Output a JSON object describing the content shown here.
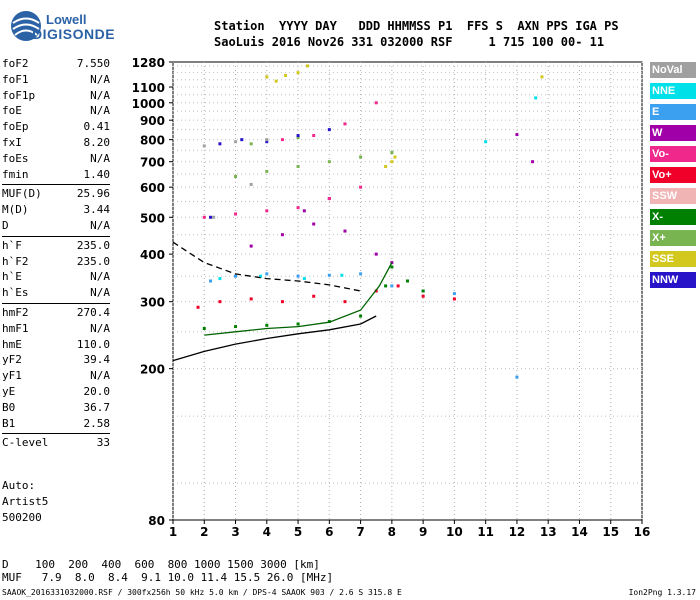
{
  "logo": {
    "line1": "Lowell",
    "line2": "DIGISONDE"
  },
  "header": {
    "labels": "Station  YYYY DAY   DDD HHMMSS P1  FFS S  AXN PPS IGA PS",
    "values": "SaoLuis 2016 Nov26 331 032000 RSF     1 715 100 00- 11"
  },
  "params_group1": [
    {
      "name": "foF2",
      "value": "7.550"
    },
    {
      "name": "foF1",
      "value": "N/A"
    },
    {
      "name": "foF1p",
      "value": "N/A"
    },
    {
      "name": "foE",
      "value": "N/A"
    },
    {
      "name": "foEp",
      "value": "0.41"
    },
    {
      "name": "fxI",
      "value": "8.20"
    },
    {
      "name": "foEs",
      "value": "N/A"
    },
    {
      "name": "fmin",
      "value": "1.40"
    }
  ],
  "params_group2": [
    {
      "name": "MUF(D)",
      "value": "25.96"
    },
    {
      "name": "M(D)",
      "value": "3.44"
    },
    {
      "name": "D",
      "value": "N/A"
    }
  ],
  "params_group3": [
    {
      "name": "h`F",
      "value": "235.0"
    },
    {
      "name": "h`F2",
      "value": "235.0"
    },
    {
      "name": "h`E",
      "value": "N/A"
    },
    {
      "name": "h`Es",
      "value": "N/A"
    }
  ],
  "params_group4": [
    {
      "name": "hmF2",
      "value": "270.4"
    },
    {
      "name": "hmF1",
      "value": "N/A"
    },
    {
      "name": "hmE",
      "value": "110.0"
    },
    {
      "name": "yF2",
      "value": "39.4"
    },
    {
      "name": "yF1",
      "value": "N/A"
    },
    {
      "name": "yE",
      "value": "20.0"
    },
    {
      "name": "B0",
      "value": "36.7"
    },
    {
      "name": "B1",
      "value": "2.58"
    }
  ],
  "params_group5": [
    {
      "name": "C-level",
      "value": "33"
    }
  ],
  "auto": {
    "line1": "Auto:",
    "line2": "Artist5",
    "line3": "500200"
  },
  "legend": [
    {
      "label": "NoVal",
      "color": "#a0a0a0"
    },
    {
      "label": "NNE",
      "color": "#00e0e8"
    },
    {
      "label": "E",
      "color": "#3ca0f0"
    },
    {
      "label": "W",
      "color": "#a000a8"
    },
    {
      "label": "Vo-",
      "color": "#f0288c"
    },
    {
      "label": "Vo+",
      "color": "#f00028"
    },
    {
      "label": "SSW",
      "color": "#f0b4b4"
    },
    {
      "label": "X-",
      "color": "#008000"
    },
    {
      "label": "X+",
      "color": "#78b450"
    },
    {
      "label": "SSE",
      "color": "#d2c81e"
    },
    {
      "label": "NNW",
      "color": "#2814c8"
    }
  ],
  "bottom": {
    "d_row": "D    100  200  400  600  800 1000 1500 3000 [km]",
    "muf_row": "MUF   7.9  8.0  8.4  9.1 10.0 11.4 15.5 26.0 [MHz]"
  },
  "footer": "SAAOK_2016331032000.RSF / 300fx256h 50 kHz 5.0 km / DPS-4 SAAOK 903 / 2.6 S 315.8 E",
  "version": "Ion2Png 1.3.17",
  "chart_data": {
    "type": "scatter",
    "title": "",
    "xlabel": "",
    "ylabel": "",
    "xlim": [
      1,
      16
    ],
    "ylim": [
      80,
      1280
    ],
    "y_scale": "log",
    "x_ticks": [
      1,
      2,
      3,
      4,
      5,
      6,
      7,
      8,
      9,
      10,
      11,
      12,
      13,
      14,
      15,
      16
    ],
    "y_ticks": [
      80,
      200,
      300,
      400,
      500,
      600,
      700,
      800,
      900,
      1000,
      1100,
      1280
    ],
    "grid": true,
    "series": [
      {
        "name": "Vo+",
        "color": "#f00028",
        "points": [
          [
            1.8,
            290
          ],
          [
            2.5,
            300
          ],
          [
            3.5,
            305
          ],
          [
            4.5,
            300
          ],
          [
            5.5,
            310
          ],
          [
            6.5,
            300
          ],
          [
            7.5,
            320
          ],
          [
            8.2,
            330
          ],
          [
            9.0,
            310
          ],
          [
            10.0,
            305
          ]
        ]
      },
      {
        "name": "E",
        "color": "#3ca0f0",
        "points": [
          [
            3.0,
            350
          ],
          [
            4.0,
            355
          ],
          [
            5.0,
            350
          ],
          [
            6.0,
            352
          ],
          [
            7.0,
            355
          ],
          [
            8.0,
            330
          ],
          [
            9.0,
            320
          ],
          [
            10.0,
            315
          ],
          [
            2.2,
            340
          ],
          [
            12.0,
            190
          ]
        ]
      },
      {
        "name": "W",
        "color": "#a000a8",
        "points": [
          [
            3.5,
            420
          ],
          [
            4.5,
            450
          ],
          [
            5.5,
            480
          ],
          [
            6.5,
            460
          ],
          [
            7.5,
            400
          ],
          [
            8.0,
            380
          ],
          [
            5.2,
            520
          ],
          [
            6.0,
            560
          ],
          [
            12.0,
            825
          ],
          [
            12.5,
            700
          ]
        ]
      },
      {
        "name": "Vo-",
        "color": "#f0288c",
        "points": [
          [
            2.0,
            500
          ],
          [
            3.0,
            510
          ],
          [
            4.0,
            520
          ],
          [
            5.0,
            530
          ],
          [
            6.0,
            560
          ],
          [
            7.0,
            600
          ],
          [
            4.5,
            800
          ],
          [
            5.5,
            820
          ],
          [
            6.5,
            880
          ],
          [
            7.5,
            1000
          ]
        ]
      },
      {
        "name": "SSE",
        "color": "#d2c81e",
        "points": [
          [
            4.0,
            1170
          ],
          [
            4.6,
            1180
          ],
          [
            5.3,
            1250
          ],
          [
            4.3,
            1140
          ],
          [
            8.0,
            700
          ],
          [
            8.1,
            720
          ],
          [
            12.8,
            1170
          ],
          [
            7.8,
            680
          ],
          [
            5.0,
            1200
          ]
        ]
      },
      {
        "name": "X-",
        "color": "#008000",
        "points": [
          [
            2.0,
            255
          ],
          [
            3.0,
            258
          ],
          [
            4.0,
            260
          ],
          [
            5.0,
            262
          ],
          [
            6.0,
            266
          ],
          [
            7.0,
            275
          ],
          [
            7.8,
            330
          ],
          [
            8.0,
            370
          ],
          [
            8.5,
            340
          ],
          [
            9.0,
            320
          ]
        ]
      },
      {
        "name": "X+",
        "color": "#78b450",
        "points": [
          [
            3.0,
            640
          ],
          [
            4.0,
            660
          ],
          [
            5.0,
            680
          ],
          [
            6.0,
            700
          ],
          [
            7.0,
            720
          ],
          [
            8.0,
            740
          ],
          [
            3.5,
            780
          ],
          [
            5.0,
            810
          ]
        ]
      },
      {
        "name": "NNE",
        "color": "#00e0e8",
        "points": [
          [
            2.5,
            345
          ],
          [
            3.8,
            350
          ],
          [
            5.2,
            345
          ],
          [
            6.4,
            352
          ],
          [
            11.0,
            790
          ],
          [
            12.6,
            1030
          ]
        ]
      },
      {
        "name": "NNW",
        "color": "#2814c8",
        "points": [
          [
            2.2,
            500
          ],
          [
            2.5,
            780
          ],
          [
            3.2,
            800
          ],
          [
            4.0,
            790
          ],
          [
            5.0,
            820
          ],
          [
            6.0,
            850
          ]
        ]
      },
      {
        "name": "NoVal",
        "color": "#a0a0a0",
        "points": [
          [
            2.0,
            770
          ],
          [
            3.0,
            790
          ],
          [
            4.0,
            800
          ],
          [
            2.3,
            500
          ],
          [
            3.5,
            610
          ]
        ]
      }
    ],
    "curves": [
      {
        "name": "virtual-height-trace",
        "style": "solid",
        "color": "#000000",
        "points": [
          [
            1.0,
            210
          ],
          [
            2.0,
            222
          ],
          [
            3.0,
            232
          ],
          [
            4.0,
            240
          ],
          [
            5.0,
            247
          ],
          [
            6.0,
            253
          ],
          [
            7.0,
            262
          ],
          [
            7.5,
            275
          ]
        ]
      },
      {
        "name": "profile-upper",
        "style": "dashed",
        "color": "#000000",
        "points": [
          [
            1.0,
            430
          ],
          [
            2.0,
            380
          ],
          [
            3.0,
            355
          ],
          [
            4.0,
            345
          ],
          [
            5.0,
            340
          ],
          [
            6.0,
            332
          ],
          [
            7.0,
            320
          ]
        ]
      },
      {
        "name": "green-trace",
        "style": "solid",
        "color": "#006400",
        "points": [
          [
            2.0,
            245
          ],
          [
            3.0,
            250
          ],
          [
            4.0,
            255
          ],
          [
            5.0,
            258
          ],
          [
            6.0,
            265
          ],
          [
            7.0,
            285
          ],
          [
            7.6,
            330
          ],
          [
            8.0,
            380
          ]
        ]
      }
    ]
  }
}
